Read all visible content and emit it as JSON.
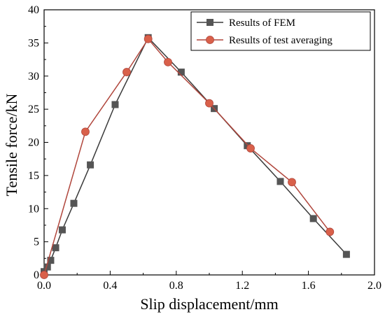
{
  "chart_data": {
    "type": "line",
    "title": "",
    "xlabel": "Slip displacement/mm",
    "ylabel": "Tensile force/kN",
    "xlim": [
      0,
      2.0
    ],
    "ylim": [
      0,
      40
    ],
    "xticks": [
      "0.0",
      "0.4",
      "0.8",
      "1.2",
      "1.6",
      "2.0"
    ],
    "yticks": [
      "0",
      "5",
      "10",
      "15",
      "20",
      "25",
      "30",
      "35",
      "40"
    ],
    "grid": false,
    "legend_position": "top-right",
    "series": [
      {
        "name": "Results of FEM",
        "marker": "square",
        "line_color": "#3a3a3a",
        "marker_color": "#555555",
        "x": [
          0.0,
          0.02,
          0.04,
          0.07,
          0.11,
          0.18,
          0.28,
          0.43,
          0.63,
          0.83,
          1.03,
          1.23,
          1.43,
          1.63,
          1.83
        ],
        "y": [
          0.5,
          1.2,
          2.2,
          4.1,
          6.8,
          10.8,
          16.6,
          25.7,
          35.8,
          30.6,
          25.1,
          19.5,
          14.1,
          8.5,
          3.1
        ]
      },
      {
        "name": "Results of test averaging",
        "marker": "circle",
        "line_color": "#b0463c",
        "marker_color": "#d9604a",
        "x": [
          0.0,
          0.25,
          0.5,
          0.63,
          0.75,
          1.0,
          1.25,
          1.5,
          1.73
        ],
        "y": [
          0.0,
          21.6,
          30.6,
          35.6,
          32.1,
          25.9,
          19.1,
          14.0,
          6.5
        ]
      }
    ]
  }
}
